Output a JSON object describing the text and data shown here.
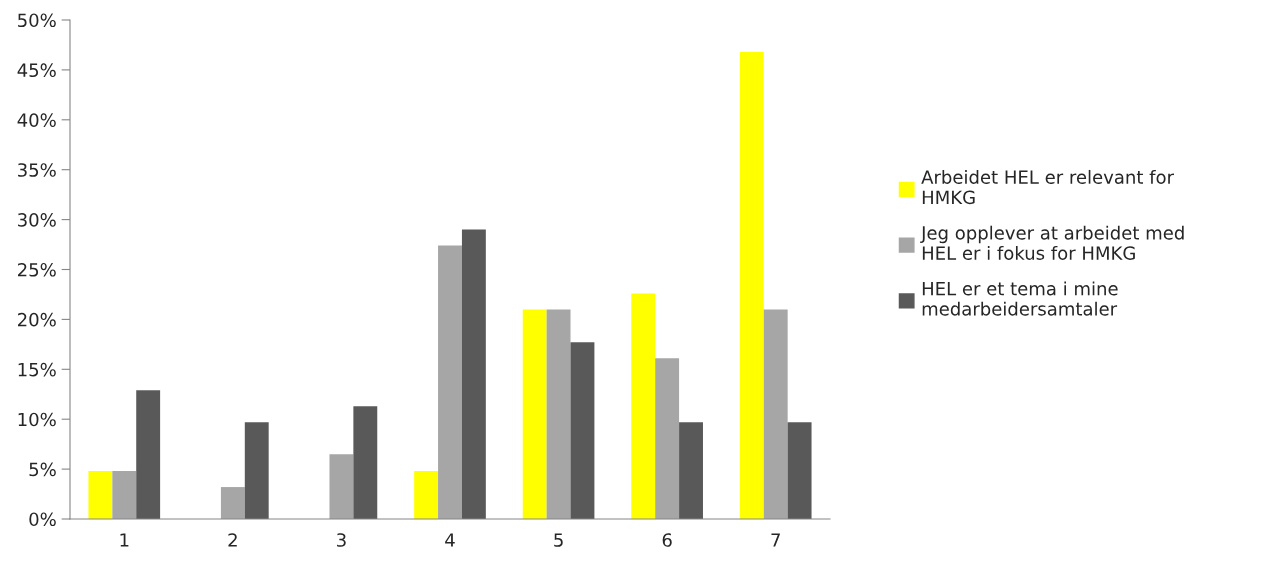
{
  "chart_data": {
    "type": "bar",
    "categories": [
      "1",
      "2",
      "3",
      "4",
      "5",
      "6",
      "7"
    ],
    "series": [
      {
        "name": "Arbeidet HEL er relevant for HMKG",
        "color": "#ffff00",
        "values": [
          4.8,
          0,
          0,
          4.8,
          21.0,
          22.6,
          46.8
        ]
      },
      {
        "name": "Jeg opplever at arbeidet med HEL er i fokus for HMKG",
        "color": "#a6a6a6",
        "values": [
          4.8,
          3.2,
          6.5,
          27.4,
          21.0,
          16.1,
          21.0
        ]
      },
      {
        "name": " HEL er et tema i mine medarbeidersamtaler",
        "color": "#595959",
        "values": [
          12.9,
          9.7,
          11.3,
          29.0,
          17.7,
          9.7,
          9.7
        ]
      }
    ],
    "ylim": [
      0,
      50
    ],
    "yticks": [
      {
        "value": 0,
        "label": "0%"
      },
      {
        "value": 5,
        "label": "5%"
      },
      {
        "value": 10,
        "label": "10%"
      },
      {
        "value": 15,
        "label": "15%"
      },
      {
        "value": 20,
        "label": "20%"
      },
      {
        "value": 25,
        "label": "25%"
      },
      {
        "value": 30,
        "label": "30%"
      },
      {
        "value": 35,
        "label": "35%"
      },
      {
        "value": 40,
        "label": "40%"
      },
      {
        "value": 45,
        "label": "45%"
      },
      {
        "value": 50,
        "label": "50%"
      }
    ],
    "grid": false,
    "legend": "right"
  }
}
